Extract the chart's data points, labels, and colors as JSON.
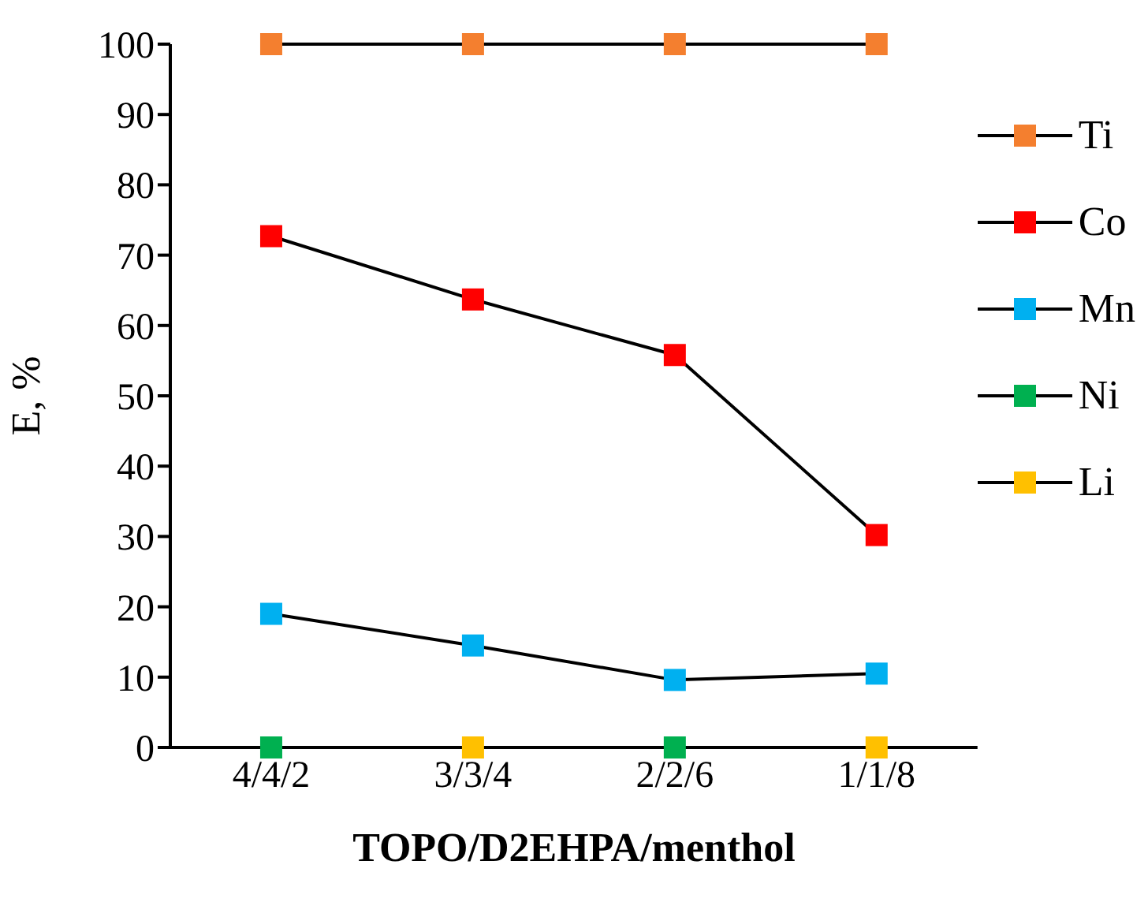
{
  "chart_data": {
    "type": "line",
    "xlabel": "TOPO/D2EHPA/menthol",
    "ylabel": "E, %",
    "categories": [
      "4/4/2",
      "3/3/4",
      "2/2/6",
      "1/1/8"
    ],
    "series": [
      {
        "name": "Ti",
        "color": "#f47f2f",
        "values": [
          100,
          100,
          100,
          100
        ]
      },
      {
        "name": "Co",
        "color": "#ff0000",
        "values": [
          72.7,
          63.7,
          55.8,
          30.2
        ]
      },
      {
        "name": "Mn",
        "color": "#00b0f0",
        "values": [
          19,
          14.5,
          9.6,
          10.5
        ]
      },
      {
        "name": "Ni",
        "type": "scatter",
        "color": "#00b050",
        "values": [
          0,
          null,
          0,
          null
        ]
      },
      {
        "name": "Li",
        "type": "scatter",
        "color": "#ffc000",
        "values": [
          null,
          0,
          null,
          0
        ]
      }
    ],
    "ylim": [
      0,
      100
    ],
    "yticks": [
      0,
      10,
      20,
      30,
      40,
      50,
      60,
      70,
      80,
      90,
      100
    ],
    "grid": false,
    "legend": "right",
    "marker": "square",
    "line_style": "solid"
  }
}
